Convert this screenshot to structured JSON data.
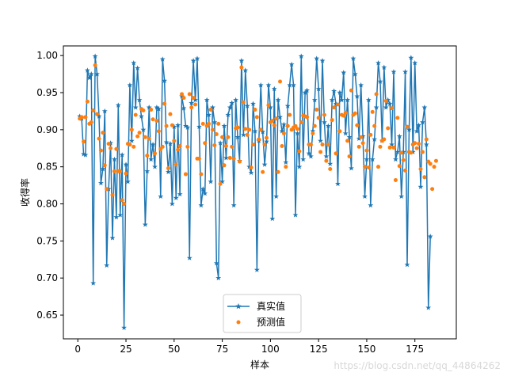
{
  "chart_data": {
    "type": "line",
    "title": "",
    "xlabel": "样本",
    "ylabel": "收得率",
    "xlim": [
      -7.5,
      196.5
    ],
    "ylim": [
      0.618,
      1.013
    ],
    "xticks": [
      0,
      25,
      50,
      75,
      100,
      125,
      150,
      175
    ],
    "xtick_labels": [
      "0",
      "25",
      "50",
      "75",
      "100",
      "125",
      "150",
      "175"
    ],
    "yticks": [
      0.65,
      0.7,
      0.75,
      0.8,
      0.85,
      0.9,
      0.95,
      1.0
    ],
    "ytick_labels": [
      "0.65",
      "0.70",
      "0.75",
      "0.80",
      "0.85",
      "0.90",
      "0.95",
      "1.00"
    ],
    "legend_position": "lower center",
    "series": [
      {
        "name": "真实值",
        "style": "line-star",
        "color": "#1f77b4",
        "values": [
          0.918,
          0.915,
          0.867,
          0.866,
          0.98,
          0.97,
          0.975,
          0.693,
          0.999,
          0.975,
          0.918,
          0.828,
          0.847,
          0.925,
          0.717,
          0.82,
          0.882,
          0.754,
          0.86,
          0.782,
          0.933,
          0.785,
          0.866,
          0.633,
          0.853,
          0.83,
          0.96,
          0.885,
          0.99,
          0.93,
          0.983,
          0.94,
          0.918,
          0.9,
          0.772,
          0.844,
          0.93,
          0.86,
          0.88,
          0.85,
          0.93,
          0.928,
          0.81,
          0.995,
          0.966,
          0.883,
          0.843,
          0.881,
          0.8,
          0.904,
          0.808,
          0.906,
          0.813,
          0.945,
          0.929,
          0.905,
          0.903,
          0.727,
          0.936,
          0.993,
          0.94,
          0.996,
          0.904,
          0.798,
          0.82,
          0.814,
          0.94,
          0.92,
          0.83,
          0.93,
          0.91,
          0.72,
          0.7,
          0.882,
          0.83,
          0.905,
          0.862,
          0.92,
          0.93,
          0.936,
          0.798,
          0.94,
          0.89,
          0.858,
          0.993,
          0.893,
          0.98,
          0.932,
          0.85,
          0.842,
          0.935,
          0.898,
          0.711,
          0.885,
          0.96,
          0.897,
          0.853,
          0.884,
          0.96,
          0.93,
          0.78,
          0.955,
          0.81,
          0.94,
          0.917,
          0.898,
          0.907,
          0.856,
          0.932,
          0.96,
          0.988,
          0.96,
          0.785,
          0.895,
          0.85,
          0.999,
          0.86,
          0.95,
          0.953,
          0.868,
          0.864,
          0.898,
          0.94,
          0.996,
          0.955,
          0.885,
          0.993,
          0.91,
          0.864,
          0.905,
          0.854,
          0.94,
          0.952,
          0.935,
          0.827,
          0.95,
          0.94,
          0.977,
          0.895,
          0.94,
          0.89,
          0.848,
          0.996,
          0.975,
          0.945,
          0.888,
          0.96,
          0.891,
          0.81,
          0.86,
          0.94,
          0.798,
          0.86,
          0.887,
          0.93,
          0.99,
          0.965,
          0.885,
          0.984,
          0.93,
          0.94,
          0.935,
          0.88,
          0.978,
          0.86,
          0.87,
          0.891,
          0.81,
          0.87,
          0.978,
          0.718,
          0.9,
          0.997,
          0.87,
          0.99,
          0.898,
          0.906,
          0.823,
          0.91,
          0.93,
          0.88,
          0.66,
          0.756
        ]
      },
      {
        "name": "预测值",
        "style": "dots",
        "color": "#ff7f0e",
        "values": [
          0.915,
          0.917,
          0.884,
          0.917,
          0.938,
          0.908,
          0.91,
          0.926,
          0.987,
          0.921,
          0.888,
          0.872,
          0.896,
          0.852,
          0.82,
          0.881,
          0.875,
          0.812,
          0.844,
          0.874,
          0.844,
          0.844,
          0.805,
          0.8,
          0.841,
          0.881,
          0.88,
          0.9,
          0.877,
          0.92,
          0.891,
          0.896,
          0.928,
          0.926,
          0.89,
          0.865,
          0.888,
          0.927,
          0.914,
          0.868,
          0.912,
          0.898,
          0.874,
          0.877,
          0.935,
          0.905,
          0.848,
          0.921,
          0.906,
          0.885,
          0.853,
          0.873,
          0.878,
          0.948,
          0.943,
          0.84,
          0.877,
          0.948,
          0.93,
          0.943,
          0.934,
          0.861,
          0.861,
          0.84,
          0.908,
          0.882,
          0.905,
          0.908,
          0.927,
          0.9,
          0.879,
          0.894,
          0.908,
          0.827,
          0.89,
          0.852,
          0.878,
          0.89,
          0.862,
          0.877,
          0.861,
          0.902,
          0.903,
          0.857,
          0.984,
          0.937,
          0.901,
          0.893,
          0.9,
          0.849,
          0.88,
          0.927,
          0.917,
          0.887,
          0.9,
          0.843,
          0.88,
          0.889,
          0.933,
          0.91,
          0.912,
          0.906,
          0.915,
          0.843,
          0.965,
          0.878,
          0.895,
          0.85,
          0.905,
          0.92,
          0.9,
          0.903,
          0.905,
          0.901,
          0.871,
          0.91,
          0.919,
          0.918,
          0.917,
          0.88,
          0.88,
          0.895,
          0.905,
          0.927,
          0.916,
          0.87,
          0.88,
          0.92,
          0.858,
          0.88,
          0.847,
          0.913,
          0.93,
          0.868,
          0.934,
          0.898,
          0.92,
          0.919,
          0.923,
          0.885,
          0.864,
          0.953,
          0.92,
          0.922,
          0.906,
          0.877,
          0.89,
          0.882,
          0.85,
          0.872,
          0.849,
          0.893,
          0.924,
          0.905,
          0.948,
          0.85,
          0.877,
          0.885,
          0.887,
          0.939,
          0.902,
          0.876,
          0.929,
          0.876,
          0.832,
          0.916,
          0.851,
          0.869,
          0.859,
          0.845,
          0.904,
          0.87,
          0.869,
          0.88,
          0.882,
          0.875,
          0.881,
          0.847,
          0.87,
          0.836,
          0.887,
          0.857,
          0.854,
          0.82,
          0.85,
          0.858
        ]
      }
    ]
  },
  "watermark": "https://blog.csdn.net/qq_44864262"
}
